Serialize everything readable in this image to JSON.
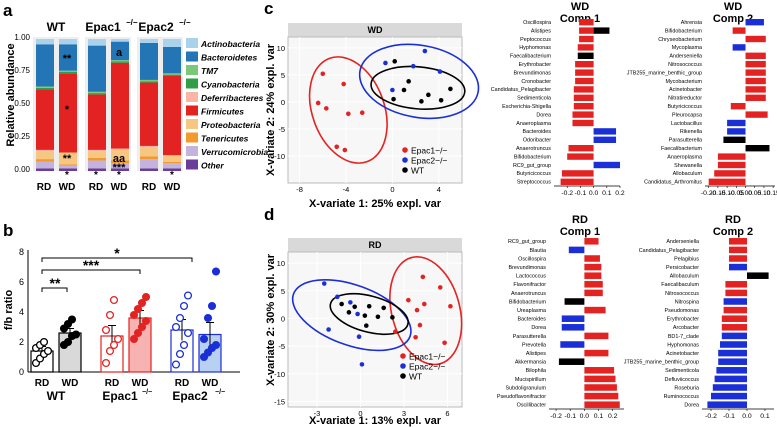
{
  "colors": {
    "actino": "#a9d3ec",
    "bacter": "#2375b5",
    "tm7": "#7cc77a",
    "cyano": "#2e9e49",
    "defer": "#f7b7a4",
    "firmi": "#e32322",
    "proteo": "#f7c680",
    "teneri": "#f29a2e",
    "verruco": "#c4b3dc",
    "other": "#6a3d9a",
    "epac1": "#e32322",
    "epac2": "#1b2fd6",
    "wt": "#000000",
    "neg": "#1b2fd6",
    "panel_hdr": "#d9d9d9",
    "panel_bg": "#f7f7f7"
  },
  "panel_labels": {
    "a": "a",
    "b": "b",
    "c": "c",
    "d": "d"
  },
  "panel_a": {
    "ylabel": "Relative abundance",
    "group_labels": [
      "WT",
      "Epac1",
      "Epac2"
    ],
    "bar_labels": [
      "RD",
      "WD",
      "RD",
      "WD",
      "RD",
      "WD"
    ],
    "yticks": [
      "1.00",
      "0.75",
      "0.50",
      "0.25",
      "0.00"
    ],
    "annotations": {
      "wt_wd_top": "**",
      "wt_wd_mid": "*",
      "wt_wd_low": "**",
      "wt_wd_bot": "*",
      "e1_wd_top": "a",
      "e1_wd_aa": "aa",
      "e1_wd_low": "***",
      "e1_rd_bot": "*",
      "e1_wd_bot": "*",
      "e2_wd_bot": "*"
    },
    "legend": [
      "Actinobacteria",
      "Bacteroidetes",
      "TM7",
      "Cyanobacteria",
      "Deferribacteres",
      "Firmicutes",
      "Proteobacteria",
      "Tenericutes",
      "Verrucomicrobia",
      "Other"
    ]
  },
  "panel_b": {
    "ylabel": "f/b ratio",
    "yticks": [
      "0",
      "2",
      "4",
      "6",
      "8"
    ],
    "bar_labels": [
      "RD",
      "WD",
      "RD",
      "WD",
      "RD",
      "WD"
    ],
    "group_labels": [
      "WT",
      "Epac1",
      "Epac2"
    ],
    "stars": [
      "*",
      "***",
      "**"
    ]
  },
  "panel_c": {
    "title": "WD",
    "xlabel": "X-variate 1: 25% expl. var",
    "ylabel": "X-variate 2: 24% expl. var",
    "xticks": [
      "-8",
      "-4",
      "0",
      "4"
    ],
    "yticks": [
      "10",
      "5",
      "0",
      "-5",
      "-10"
    ],
    "legend": [
      "Epac1−/−",
      "Epac2−/−",
      "WT"
    ],
    "comp1_title": [
      "WD",
      "Comp 1"
    ],
    "comp2_title": [
      "WD",
      "Comp 2"
    ],
    "comp1_ticks": [
      "-0.2",
      "-0.1",
      "0.0",
      "0.1",
      "0.2"
    ],
    "comp2_ticks": [
      "-0.20",
      "-0.15",
      "-0.10",
      "-0.05",
      "0.00",
      "0.05",
      "0.10",
      "0.15"
    ]
  },
  "panel_d": {
    "title": "RD",
    "xlabel": "X-variate 1: 13% expl. var",
    "ylabel": "X-variate 2: 30% expl. var",
    "xticks": [
      "-3",
      "0",
      "3",
      "6"
    ],
    "yticks": [
      "10",
      "5",
      "0",
      "-5",
      "-10",
      "-15"
    ],
    "legend": [
      "Epac1−/−",
      "Epac2−/−",
      "WT"
    ],
    "comp1_title": [
      "RD",
      "Comp 1"
    ],
    "comp2_title": [
      "RD",
      "Comp 2"
    ],
    "comp1_ticks": [
      "-0.2",
      "-0.1",
      "0.0",
      "0.1",
      "0.2"
    ],
    "comp2_ticks": [
      "-0.2",
      "-0.1",
      "0.0",
      "0.1"
    ]
  },
  "chart_data": [
    {
      "type": "bar",
      "title": "Relative abundance by phylum (stacked)",
      "categories": [
        "WT RD",
        "WT WD",
        "Epac1 RD",
        "Epac1 WD",
        "Epac2 RD",
        "Epac2 WD"
      ],
      "ylim": [
        0,
        1
      ],
      "series": [
        {
          "name": "Other",
          "values": [
            0.02,
            0.02,
            0.02,
            0.02,
            0.02,
            0.02
          ]
        },
        {
          "name": "Verrucomicrobia",
          "values": [
            0.05,
            0.02,
            0.06,
            0.04,
            0.07,
            0.04
          ]
        },
        {
          "name": "Tenericutes",
          "values": [
            0.02,
            0.01,
            0.02,
            0.02,
            0.02,
            0.01
          ]
        },
        {
          "name": "Proteobacteria",
          "values": [
            0.06,
            0.09,
            0.05,
            0.08,
            0.07,
            0.05
          ]
        },
        {
          "name": "Deferribacteres",
          "values": [
            0.01,
            0.0,
            0.01,
            0.01,
            0.01,
            0.0
          ]
        },
        {
          "name": "Firmicutes",
          "values": [
            0.46,
            0.6,
            0.42,
            0.65,
            0.48,
            0.6
          ]
        },
        {
          "name": "Cyanobacteria",
          "values": [
            0.01,
            0.01,
            0.01,
            0.01,
            0.01,
            0.01
          ]
        },
        {
          "name": "TM7",
          "values": [
            0.01,
            0.01,
            0.01,
            0.01,
            0.01,
            0.01
          ]
        },
        {
          "name": "Bacteroidetes",
          "values": [
            0.32,
            0.2,
            0.35,
            0.14,
            0.28,
            0.2
          ]
        },
        {
          "name": "Actinobacteria",
          "values": [
            0.04,
            0.04,
            0.05,
            0.02,
            0.03,
            0.06
          ]
        }
      ]
    },
    {
      "type": "bar",
      "title": "f/b ratio",
      "categories": [
        "WT RD",
        "WT WD",
        "Epac1 RD",
        "Epac1 WD",
        "Epac2 RD",
        "Epac2 WD"
      ],
      "values": [
        1.4,
        2.6,
        2.4,
        3.6,
        2.8,
        2.5
      ],
      "errors": [
        0.3,
        0.3,
        0.7,
        0.5,
        0.7,
        0.8
      ],
      "ylim": [
        0,
        8
      ],
      "points": [
        [
          0.6,
          0.9,
          1.2,
          1.4,
          1.6,
          1.8,
          2.0
        ],
        [
          1.8,
          2.0,
          2.4,
          2.5,
          2.9,
          3.2,
          3.5
        ],
        [
          0.6,
          1.4,
          1.8,
          2.2,
          2.8,
          3.8,
          4.8
        ],
        [
          2.2,
          2.6,
          3.0,
          3.4,
          3.8,
          4.2,
          4.6,
          5.0
        ],
        [
          0.5,
          1.2,
          1.8,
          2.6,
          3.0,
          3.6,
          4.4,
          5.1
        ],
        [
          1.0,
          1.3,
          1.6,
          1.8,
          2.2,
          3.6,
          4.4,
          6.7
        ]
      ],
      "point_fill": [
        "#ffffff",
        "#000000",
        "#ffffff",
        "#e32322",
        "#ffffff",
        "#1b2fd6"
      ],
      "point_stroke": [
        "#000000",
        "#000000",
        "#e32322",
        "#e32322",
        "#1b2fd6",
        "#1b2fd6"
      ],
      "bar_fill": [
        "#ffffff",
        "#d9d9d9",
        "#ffffff",
        "#f7b2b2",
        "#ffffff",
        "#b8d0f2"
      ],
      "bar_stroke": [
        "#000000",
        "#000000",
        "#e32322",
        "#e32322",
        "#1b2fd6",
        "#1b2fd6"
      ]
    },
    {
      "type": "scatter",
      "title": "WD",
      "xlim": [
        -9,
        6
      ],
      "ylim": [
        -15,
        12
      ],
      "series": [
        {
          "name": "Epac1",
          "color": "#e32322",
          "points": [
            [
              -6,
              5.2
            ],
            [
              -4.2,
              3.3
            ],
            [
              -6.4,
              -0.2
            ],
            [
              -5.7,
              -1.2
            ],
            [
              -3.8,
              -2.2
            ],
            [
              -2.6,
              -2.0
            ],
            [
              -4.8,
              -8.3
            ],
            [
              -4.1,
              -8.9
            ]
          ]
        },
        {
          "name": "Epac2",
          "color": "#1b2fd6",
          "points": [
            [
              -0.6,
              7.2
            ],
            [
              2.8,
              9.4
            ],
            [
              1.8,
              6.6
            ],
            [
              4.1,
              5.6
            ],
            [
              0.0,
              2.2
            ]
          ]
        },
        {
          "name": "WT",
          "color": "#000000",
          "points": [
            [
              0.2,
              7.5
            ],
            [
              1.4,
              3.8
            ],
            [
              1.0,
              2.2
            ],
            [
              0.1,
              0.5
            ],
            [
              3.1,
              1.3
            ],
            [
              2.5,
              0.1
            ],
            [
              4.2,
              0.3
            ],
            [
              5.0,
              2.4
            ]
          ]
        }
      ]
    },
    {
      "type": "bar",
      "title": "WD Comp 1",
      "xlim": [
        -0.3,
        0.2
      ],
      "categories": [
        "Oscillospira",
        "Alistipes",
        "Peptococcus",
        "Hyphomonas",
        "Faecalibacterium",
        "Erythrobacter",
        "Brevundimonas",
        "Cronobacter",
        "Candidatus_Pelagibacter",
        "Sedimenticola",
        "Escherichia-Shigella",
        "Dorea",
        "Anaeroplasma",
        "Bacteroides",
        "Odoribacter",
        "Anaerotruncus",
        "Bifidobacterium",
        "RC9_gut_group",
        "Butyricicoccus",
        "Streptococcus"
      ],
      "values": [
        -0.11,
        -0.11,
        -0.11,
        -0.12,
        -0.12,
        -0.14,
        -0.14,
        -0.14,
        -0.15,
        -0.15,
        -0.15,
        -0.16,
        -0.16,
        0.17,
        0.17,
        -0.19,
        -0.2,
        0.2,
        -0.24,
        -0.25
      ],
      "group": [
        "Epac1",
        "Epac1",
        "Epac1",
        "Epac1",
        "WT",
        "Epac1",
        "Epac1",
        "Epac1",
        "Epac1",
        "Epac1",
        "Epac1",
        "Epac1",
        "Epac1",
        "Epac2",
        "Epac2",
        "Epac1",
        "Epac1",
        "Epac2",
        "Epac1",
        "Epac1"
      ],
      "extra": [
        {
          "name": "Alistipes",
          "value": 0.12,
          "group": "WT"
        }
      ]
    },
    {
      "type": "bar",
      "title": "WD Comp 2",
      "xlim": [
        -0.22,
        0.16
      ],
      "categories": [
        "Ahrensia",
        "Bifidobacterium",
        "Chryseobacterium",
        "Mycoplasma",
        "Anderseniella",
        "Nitrosococcus",
        "JTB255_marine_benthic_group",
        "Mycobacterium",
        "Acinetobacter",
        "Nitratireductor",
        "Butyricicoccus",
        "Pleurocapsa",
        "Lactobacillus",
        "Rikenella",
        "Parasutterella",
        "Faecalibacterium",
        "Anaeroplasma",
        "Shewanella",
        "Allobaculum",
        "Candidatus_Arthromitus"
      ],
      "values": [
        0.1,
        -0.07,
        0.11,
        -0.07,
        0.11,
        0.11,
        0.11,
        0.11,
        0.11,
        0.11,
        -0.08,
        0.12,
        -0.1,
        -0.1,
        -0.12,
        0.13,
        -0.15,
        -0.15,
        -0.17,
        -0.2
      ],
      "group": [
        "Epac2",
        "Epac1",
        "Epac1",
        "Epac2",
        "Epac1",
        "Epac1",
        "Epac1",
        "Epac1",
        "Epac1",
        "Epac1",
        "Epac1",
        "Epac1",
        "Epac2",
        "Epac2",
        "WT",
        "WT",
        "Epac1",
        "Epac1",
        "Epac1",
        "Epac1"
      ]
    },
    {
      "type": "scatter",
      "title": "RD",
      "xlim": [
        -5,
        7
      ],
      "ylim": [
        -16,
        12
      ],
      "series": [
        {
          "name": "Epac1",
          "color": "#e32322",
          "points": [
            [
              4.3,
              7.5
            ],
            [
              5.5,
              5.6
            ],
            [
              3.3,
              3.3
            ],
            [
              4.4,
              2.6
            ],
            [
              6.2,
              2.2
            ],
            [
              3.9,
              1.5
            ],
            [
              4.1,
              -1.2
            ],
            [
              2.4,
              -2.4
            ],
            [
              3.8,
              -3.4
            ],
            [
              5.8,
              -4.4
            ]
          ]
        },
        {
          "name": "Epac2",
          "color": "#1b2fd6",
          "points": [
            [
              -2.5,
              6.3
            ],
            [
              -1.6,
              3.9
            ],
            [
              -0.7,
              2.9
            ],
            [
              -0.2,
              0.8
            ],
            [
              -2.2,
              -2.0
            ],
            [
              -0.1,
              -3.3
            ],
            [
              0.1,
              -8.3
            ]
          ]
        },
        {
          "name": "WT",
          "color": "#000000",
          "points": [
            [
              -1.3,
              2.6
            ],
            [
              -0.4,
              2.1
            ],
            [
              0.6,
              2.2
            ],
            [
              1.6,
              1.9
            ],
            [
              -0.8,
              1.1
            ],
            [
              0.3,
              0.5
            ],
            [
              1.2,
              0.3
            ],
            [
              0.4,
              -1.3
            ],
            [
              2.2,
              0.2
            ]
          ]
        }
      ]
    },
    {
      "type": "bar",
      "title": "RD Comp 1",
      "xlim": [
        -0.25,
        0.28
      ],
      "categories": [
        "RC9_gut_group",
        "Blautia",
        "Oscillospira",
        "Brevundimonas",
        "Lactococcus",
        "Flavonifractor",
        "Anaerotruncus",
        "Bifidobacterium",
        "Ureaplasma",
        "Bacteroides",
        "Dorea",
        "Parasutterella",
        "Prevotella",
        "Alistipes",
        "Akkermansia",
        "Bilophila",
        "Mucispirillum",
        "Subdoligranulum",
        "Pseudoflavonifractor",
        "Oscillibacter"
      ],
      "values": [
        0.1,
        -0.11,
        0.11,
        0.12,
        0.12,
        0.13,
        0.13,
        -0.14,
        0.15,
        -0.16,
        -0.16,
        0.17,
        -0.17,
        0.17,
        -0.18,
        0.21,
        0.22,
        0.23,
        0.24,
        0.25
      ],
      "group": [
        "Epac1",
        "Epac2",
        "Epac1",
        "Epac1",
        "Epac1",
        "Epac1",
        "Epac1",
        "WT",
        "Epac1",
        "Epac2",
        "Epac2",
        "Epac1",
        "Epac2",
        "Epac1",
        "WT",
        "Epac1",
        "Epac1",
        "Epac1",
        "Epac1",
        "Epac1"
      ]
    },
    {
      "type": "bar",
      "title": "RD Comp 2",
      "xlim": [
        -0.25,
        0.15
      ],
      "categories": [
        "Anderseniella",
        "Candidatus_Pelagibacter",
        "Pelagibius",
        "Persicobacter",
        "Allobaculum",
        "Faecalibaculum",
        "Nitrosococcus",
        "Nitrospina",
        "Pseudomonas",
        "Erythrobacter",
        "Arcobacter",
        "BD1-7_clade",
        "Hyphomonas",
        "Acinetobacter",
        "JTB255_marine_benthic_group",
        "Sedimenticola",
        "Defluviicoccus",
        "Roseburia",
        "Ruminococcus",
        "Dorea"
      ],
      "values": [
        -0.1,
        -0.1,
        -0.1,
        -0.1,
        0.12,
        -0.12,
        -0.12,
        -0.13,
        -0.13,
        -0.14,
        -0.14,
        -0.14,
        -0.15,
        -0.16,
        -0.16,
        -0.17,
        -0.18,
        -0.19,
        -0.2,
        -0.22
      ],
      "group": [
        "Epac1",
        "Epac1",
        "Epac1",
        "Epac2",
        "WT",
        "Epac1",
        "Epac1",
        "Epac2",
        "Epac1",
        "Epac1",
        "Epac1",
        "Epac2",
        "Epac2",
        "Epac2",
        "Epac2",
        "Epac2",
        "Epac2",
        "Epac2",
        "Epac2",
        "Epac2"
      ]
    }
  ]
}
